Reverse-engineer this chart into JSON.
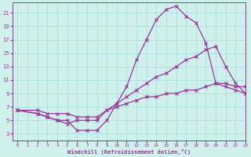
{
  "xlabel": "Windchill (Refroidissement éolien,°C)",
  "background_color": "#cff0eb",
  "grid_color": "#aadddd",
  "line_color": "#993399",
  "ylim": [
    2,
    22.5
  ],
  "xlim": [
    -0.5,
    23
  ],
  "yticks": [
    3,
    5,
    7,
    9,
    11,
    13,
    15,
    17,
    19,
    21
  ],
  "xticks": [
    0,
    1,
    2,
    3,
    4,
    5,
    6,
    7,
    8,
    9,
    10,
    11,
    12,
    13,
    14,
    15,
    16,
    17,
    18,
    19,
    20,
    21,
    22,
    23
  ],
  "line1_x": [
    0,
    2,
    3,
    4,
    5,
    6,
    7,
    8,
    9,
    10,
    11,
    12,
    13,
    14,
    15,
    16,
    17,
    18,
    19,
    20,
    21,
    22,
    23
  ],
  "line1_y": [
    6.5,
    6.0,
    5.5,
    5.0,
    5.0,
    3.5,
    3.5,
    3.5,
    5.0,
    7.5,
    10.0,
    14.0,
    17.0,
    20.0,
    21.5,
    22.0,
    20.5,
    19.5,
    16.5,
    10.5,
    10.0,
    9.5,
    9.0
  ],
  "line2_x": [
    0,
    2,
    3,
    4,
    5,
    6,
    7,
    8,
    9,
    10,
    11,
    12,
    13,
    14,
    15,
    16,
    17,
    18,
    19,
    20,
    21,
    22,
    23
  ],
  "line2_y": [
    6.5,
    6.0,
    5.5,
    5.0,
    4.5,
    5.0,
    5.0,
    5.0,
    6.5,
    7.5,
    8.5,
    9.5,
    10.5,
    11.5,
    12.0,
    13.0,
    14.0,
    14.5,
    15.5,
    16.0,
    13.0,
    10.5,
    9.0
  ],
  "line3_x": [
    0,
    2,
    3,
    4,
    5,
    6,
    7,
    8,
    9,
    10,
    11,
    12,
    13,
    14,
    15,
    16,
    17,
    18,
    19,
    20,
    21,
    22,
    23
  ],
  "line3_y": [
    6.5,
    6.5,
    6.0,
    6.0,
    6.0,
    5.5,
    5.5,
    5.5,
    6.5,
    7.0,
    7.5,
    8.0,
    8.5,
    8.5,
    9.0,
    9.0,
    9.5,
    9.5,
    10.0,
    10.5,
    10.5,
    10.0,
    10.0
  ]
}
